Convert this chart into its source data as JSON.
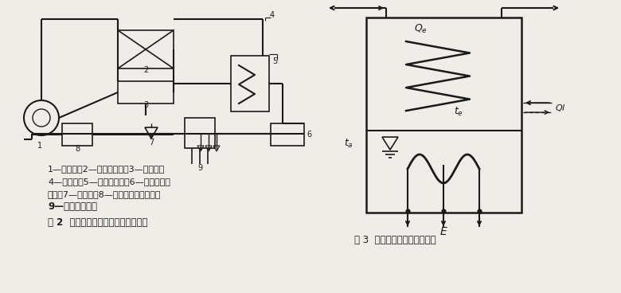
{
  "bg_color": "#f0ede8",
  "line_color": "#1a1a1a",
  "fig2_caption_line1": "1—压缩机；2—风冷冷凝器；3—储液器；",
  "fig2_caption_line2": "4—过冷器；5—干燥过滤器；6—涅轮流量变",
  "fig2_caption_line3": "送器；7—膨胀阁；8—二次制冷剂量热计；",
  "fig2_caption_line4": "9—含油测定装置",
  "fig2_title": "图 2  涅轮流量变送器标定系统原理图",
  "fig3_title": "图 3  二次制冷剂量热计示意图"
}
